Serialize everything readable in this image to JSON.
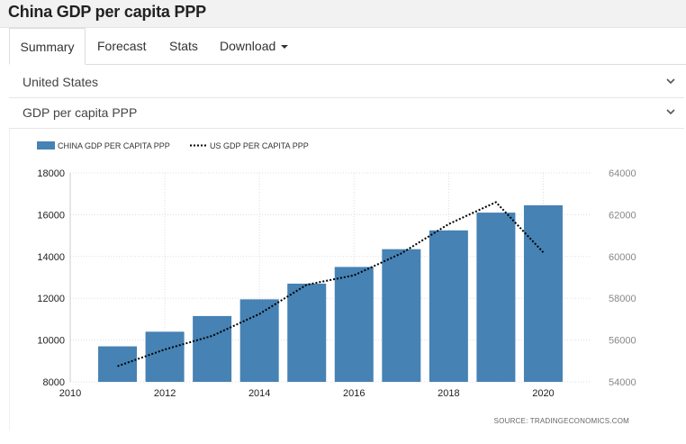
{
  "page": {
    "title": "China GDP per capita PPP"
  },
  "tabs": [
    {
      "label": "Summary",
      "active": true
    },
    {
      "label": "Forecast"
    },
    {
      "label": "Stats"
    },
    {
      "label": "Download"
    }
  ],
  "selectors": {
    "country": "United States",
    "indicator": "GDP per capita PPP"
  },
  "colors": {
    "bar": "#4682b4",
    "grid": "#dddddd",
    "line": "#000000"
  },
  "chart_data": {
    "type": "bar",
    "source": "SOURCE:  TRADINGECONOMICS.COM",
    "legend": [
      "CHINA GDP PER CAPITA PPP",
      "US GDP PER CAPITA PPP"
    ],
    "x_ticks": [
      "2010",
      "2012",
      "2014",
      "2016",
      "2018",
      "2020"
    ],
    "xlim": [
      2010,
      2021
    ],
    "y_left": {
      "ticks": [
        "8000",
        "10000",
        "12000",
        "14000",
        "16000",
        "18000"
      ],
      "lim": [
        8000,
        18000
      ]
    },
    "y_right": {
      "ticks": [
        "54000",
        "56000",
        "58000",
        "60000",
        "62000",
        "64000"
      ],
      "lim": [
        54000,
        64000
      ]
    },
    "legend_position": "top-left",
    "grid": true,
    "series": [
      {
        "name": "CHINA GDP PER CAPITA PPP",
        "type": "bar",
        "axis": "left",
        "x": [
          2011,
          2012,
          2013,
          2014,
          2015,
          2016,
          2017,
          2018,
          2019,
          2020
        ],
        "values": [
          9700,
          10400,
          11150,
          11950,
          12700,
          13500,
          14350,
          15250,
          16100,
          16450
        ]
      },
      {
        "name": "US GDP PER CAPITA PPP",
        "type": "line",
        "axis": "right",
        "style": "dotted",
        "x": [
          2011,
          2012,
          2013,
          2014,
          2015,
          2016,
          2017,
          2018,
          2019,
          2020
        ],
        "values": [
          54750,
          55550,
          56200,
          57250,
          58650,
          59100,
          60150,
          61550,
          62600,
          60200
        ]
      }
    ]
  }
}
